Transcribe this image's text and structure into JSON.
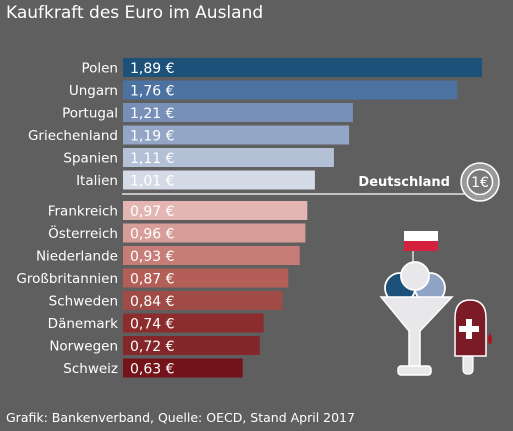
{
  "title": "Kaufkraft des Euro im Ausland",
  "source": "Grafik: Bankenverband, Quelle: OECD, Stand April 2017",
  "chart_data": {
    "type": "bar",
    "orientation": "horizontal",
    "categories": [
      "Polen",
      "Ungarn",
      "Portugal",
      "Griechenland",
      "Spanien",
      "Italien",
      "Frankreich",
      "Österreich",
      "Niederlande",
      "Großbritannien",
      "Schweden",
      "Dänemark",
      "Norwegen",
      "Schweiz"
    ],
    "values": [
      1.89,
      1.76,
      1.21,
      1.19,
      1.11,
      1.01,
      0.97,
      0.96,
      0.93,
      0.87,
      0.84,
      0.74,
      0.72,
      0.63
    ],
    "value_labels": [
      "1,89 €",
      "1,76 €",
      "1,21 €",
      "1,19 €",
      "1,11 €",
      "1,01 €",
      "0,97 €",
      "0,96 €",
      "0,93 €",
      "0,87 €",
      "0,84 €",
      "0,74 €",
      "0,72 €",
      "0,63 €"
    ],
    "bar_colors": [
      "#1c5279",
      "#4c72a2",
      "#7890b8",
      "#93a6c6",
      "#b4c0d6",
      "#d4dae6",
      "#e3b6b3",
      "#d79d98",
      "#c67d77",
      "#b35e57",
      "#a04b45",
      "#8d2c2c",
      "#84272a",
      "#75131b"
    ],
    "reference": {
      "label": "Deutschland",
      "value": 1.0,
      "coin_label": "1€"
    },
    "xlim": [
      0,
      2.0
    ],
    "grid": false,
    "legend": "none"
  },
  "decorations": {
    "flag_icon": "poland-flag-icon",
    "ice_cream_icon": "ice-cream-cup-icon",
    "popsicle_icon": "popsicle-icon",
    "colors": {
      "background": "#5f5f5f",
      "flag_white": "#ffffff",
      "flag_red": "#d4213d",
      "scoop_blue": "#1c5279",
      "scoop_light": "#8fa3c4",
      "popsicle": "#7a1b26"
    }
  }
}
